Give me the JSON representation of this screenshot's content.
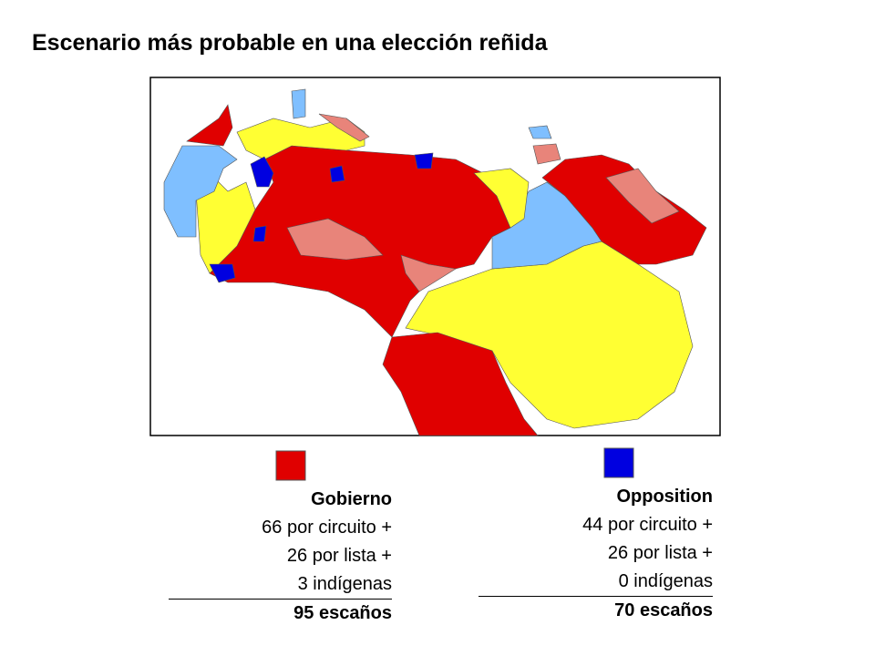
{
  "title": "Escenario más probable en una elección reñida",
  "legend": [
    {
      "name": "Gobierno",
      "lines": [
        "66 por circuito +",
        "26 por lista  +",
        "3 indígenas"
      ],
      "total": "95 escaños"
    },
    {
      "name": "Opposition",
      "lines": [
        "44 por circuito +",
        "26 por lista  +",
        "0 indígenas"
      ],
      "total": "70 escaños"
    }
  ]
}
